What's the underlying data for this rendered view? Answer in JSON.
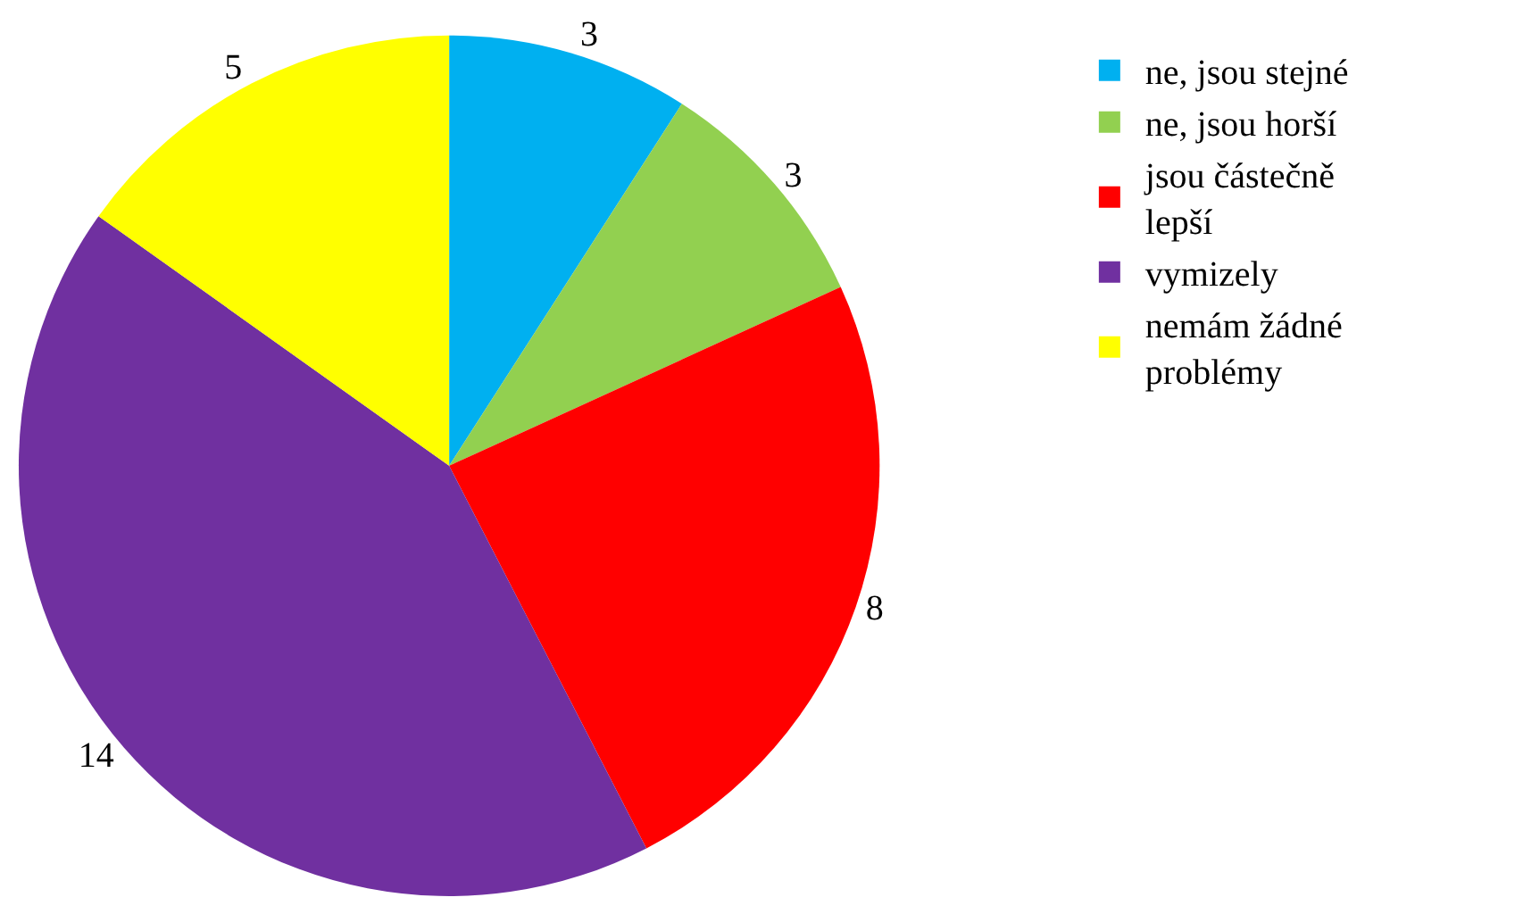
{
  "chart_data": {
    "type": "pie",
    "categories": [
      "ne, jsou stejné",
      "ne, jsou horší",
      "jsou částečně lepší",
      "vymizely",
      " nemám žádné problémy"
    ],
    "values": [
      3,
      3,
      8,
      14,
      5
    ],
    "colors": [
      "#00b0f0",
      "#92d050",
      "#ff0000",
      "#7030a0",
      "#ffff00"
    ],
    "data_labels": true,
    "legend": "right"
  }
}
